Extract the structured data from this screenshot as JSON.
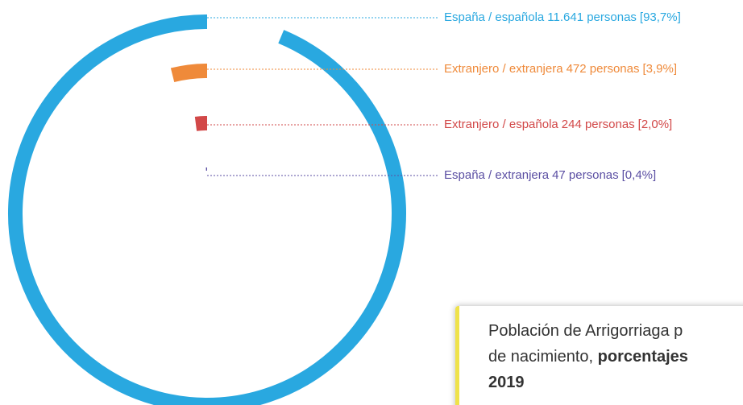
{
  "chart_data": {
    "type": "radial-bar",
    "categories": [
      "España / española",
      "Extranjero / extranjera",
      "Extranjero / española",
      "España / extranjera"
    ],
    "count_labels": [
      "11.641 personas",
      "472 personas",
      "244 personas",
      "47 personas"
    ],
    "values": [
      93.7,
      3.9,
      2.0,
      0.4
    ],
    "value_labels": [
      "[93,7%]",
      "[3,9%]",
      "[2,0%]",
      "[0,4%]"
    ],
    "colors": [
      "#29a8e0",
      "#ef8a3a",
      "#d24848",
      "#5b4fa3"
    ],
    "title_lines": [
      [
        "Población de Arrigorriaga p"
      ],
      [
        "de nacimiento, ",
        "porcentajes"
      ],
      [
        "2019"
      ]
    ]
  }
}
